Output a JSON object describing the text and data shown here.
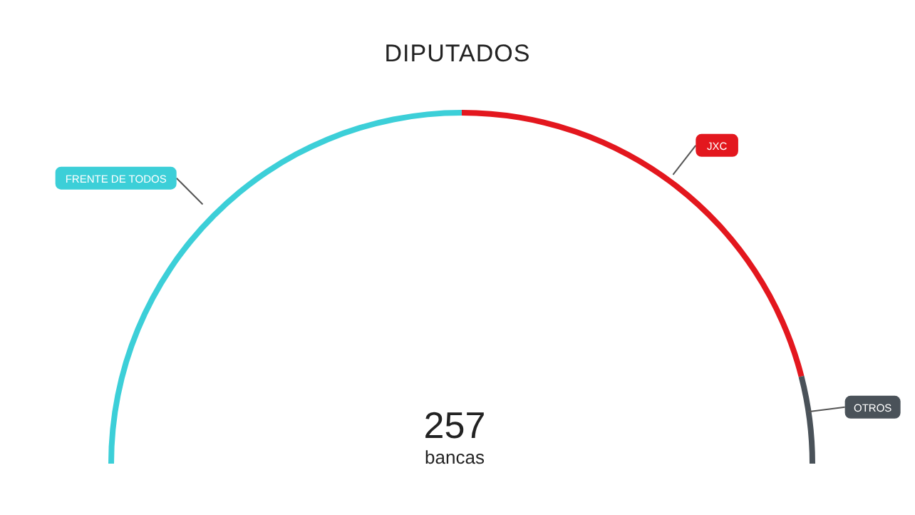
{
  "chart_data": {
    "type": "donut",
    "title": "DIPUTADOS",
    "categories": [
      "FRENTE DE TODOS",
      "JXC",
      "OTROS"
    ],
    "values": [
      50,
      42,
      8
    ],
    "colors": [
      "#3ccfd8",
      "#e3171e",
      "#4a5259"
    ],
    "annotations": [
      "257",
      "bancas"
    ]
  }
}
